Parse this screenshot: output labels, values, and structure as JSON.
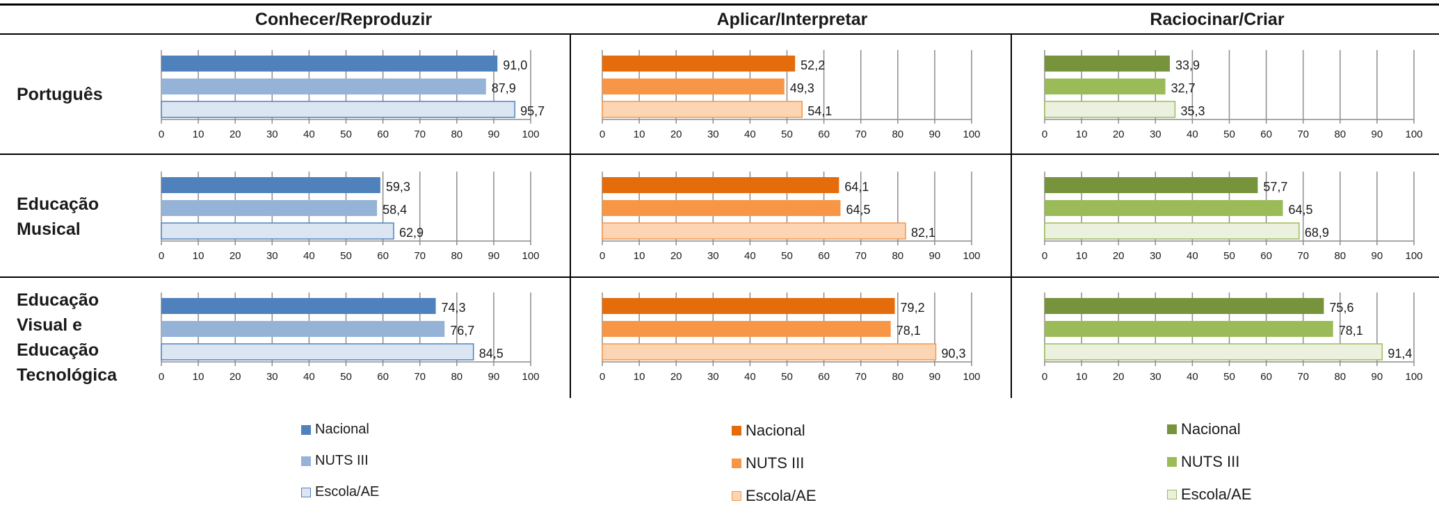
{
  "columns": [
    {
      "title": "Conhecer/Reproduzir"
    },
    {
      "title": "Aplicar/Interpretar"
    },
    {
      "title": "Raciocinar/Criar"
    }
  ],
  "rows": [
    {
      "title": "Português"
    },
    {
      "title": "Educação Musical"
    },
    {
      "title": "Educação Visual e Educação Tecnológica"
    }
  ],
  "colors": {
    "blue": [
      "#4f81bd",
      "#95b3d7",
      "#dce6f2"
    ],
    "orange": [
      "#e46c0a",
      "#f79646",
      "#fcd5b5"
    ],
    "green": [
      "#77933c",
      "#9bbb59",
      "#ebf1de"
    ]
  },
  "legends": [
    {
      "items": [
        "Nacional",
        "NUTS III",
        "Escola/AE"
      ]
    },
    {
      "items": [
        "Nacional",
        "NUTS III",
        "Escola/AE"
      ]
    },
    {
      "items": [
        "Nacional",
        "NUTS III",
        "Escola/AE"
      ]
    }
  ],
  "chart_data": [
    {
      "type": "bar",
      "row": "Português",
      "column": "Conhecer/Reproduzir",
      "categories": [
        "Nacional",
        "NUTS III",
        "Escola/AE"
      ],
      "values": [
        91.0,
        87.9,
        95.7
      ],
      "labels": [
        "91,0",
        "87,9",
        "95,7"
      ],
      "xlim": [
        0,
        100
      ],
      "ticks": [
        "0",
        "10",
        "20",
        "30",
        "40",
        "50",
        "60",
        "70",
        "80",
        "90",
        "100"
      ]
    },
    {
      "type": "bar",
      "row": "Português",
      "column": "Aplicar/Interpretar",
      "categories": [
        "Nacional",
        "NUTS III",
        "Escola/AE"
      ],
      "values": [
        52.2,
        49.3,
        54.1
      ],
      "labels": [
        "52,2",
        "49,3",
        "54,1"
      ],
      "xlim": [
        0,
        100
      ],
      "ticks": [
        "0",
        "10",
        "20",
        "30",
        "40",
        "50",
        "60",
        "70",
        "80",
        "90",
        "100"
      ]
    },
    {
      "type": "bar",
      "row": "Português",
      "column": "Raciocinar/Criar",
      "categories": [
        "Nacional",
        "NUTS III",
        "Escola/AE"
      ],
      "values": [
        33.9,
        32.7,
        35.3
      ],
      "labels": [
        "33,9",
        "32,7",
        "35,3"
      ],
      "xlim": [
        0,
        100
      ],
      "ticks": [
        "0",
        "10",
        "20",
        "30",
        "40",
        "50",
        "60",
        "70",
        "80",
        "90",
        "100"
      ]
    },
    {
      "type": "bar",
      "row": "Educação Musical",
      "column": "Conhecer/Reproduzir",
      "categories": [
        "Nacional",
        "NUTS III",
        "Escola/AE"
      ],
      "values": [
        59.3,
        58.4,
        62.9
      ],
      "labels": [
        "59,3",
        "58,4",
        "62,9"
      ],
      "xlim": [
        0,
        100
      ],
      "ticks": [
        "0",
        "10",
        "20",
        "30",
        "40",
        "50",
        "60",
        "70",
        "80",
        "90",
        "100"
      ]
    },
    {
      "type": "bar",
      "row": "Educação Musical",
      "column": "Aplicar/Interpretar",
      "categories": [
        "Nacional",
        "NUTS III",
        "Escola/AE"
      ],
      "values": [
        64.1,
        64.5,
        82.1
      ],
      "labels": [
        "64,1",
        "64,5",
        "82,1"
      ],
      "xlim": [
        0,
        100
      ],
      "ticks": [
        "0",
        "10",
        "20",
        "30",
        "40",
        "50",
        "60",
        "70",
        "80",
        "90",
        "100"
      ]
    },
    {
      "type": "bar",
      "row": "Educação Musical",
      "column": "Raciocinar/Criar",
      "categories": [
        "Nacional",
        "NUTS III",
        "Escola/AE"
      ],
      "values": [
        57.7,
        64.5,
        68.9
      ],
      "labels": [
        "57,7",
        "64,5",
        "68,9"
      ],
      "xlim": [
        0,
        100
      ],
      "ticks": [
        "0",
        "10",
        "20",
        "30",
        "40",
        "50",
        "60",
        "70",
        "80",
        "90",
        "100"
      ]
    },
    {
      "type": "bar",
      "row": "Educação Visual e Educação Tecnológica",
      "column": "Conhecer/Reproduzir",
      "categories": [
        "Nacional",
        "NUTS III",
        "Escola/AE"
      ],
      "values": [
        74.3,
        76.7,
        84.5
      ],
      "labels": [
        "74,3",
        "76,7",
        "84,5"
      ],
      "xlim": [
        0,
        100
      ],
      "ticks": [
        "0",
        "10",
        "20",
        "30",
        "40",
        "50",
        "60",
        "70",
        "80",
        "90",
        "100"
      ]
    },
    {
      "type": "bar",
      "row": "Educação Visual e Educação Tecnológica",
      "column": "Aplicar/Interpretar",
      "categories": [
        "Nacional",
        "NUTS III",
        "Escola/AE"
      ],
      "values": [
        79.2,
        78.1,
        90.3
      ],
      "labels": [
        "79,2",
        "78,1",
        "90,3"
      ],
      "xlim": [
        0,
        100
      ],
      "ticks": [
        "0",
        "10",
        "20",
        "30",
        "40",
        "50",
        "60",
        "70",
        "80",
        "90",
        "100"
      ]
    },
    {
      "type": "bar",
      "row": "Educação Visual e Educação Tecnológica",
      "column": "Raciocinar/Criar",
      "categories": [
        "Nacional",
        "NUTS III",
        "Escola/AE"
      ],
      "values": [
        75.6,
        78.1,
        91.4
      ],
      "labels": [
        "75,6",
        "78,1",
        "91,4"
      ],
      "xlim": [
        0,
        100
      ],
      "ticks": [
        "0",
        "10",
        "20",
        "30",
        "40",
        "50",
        "60",
        "70",
        "80",
        "90",
        "100"
      ]
    }
  ]
}
